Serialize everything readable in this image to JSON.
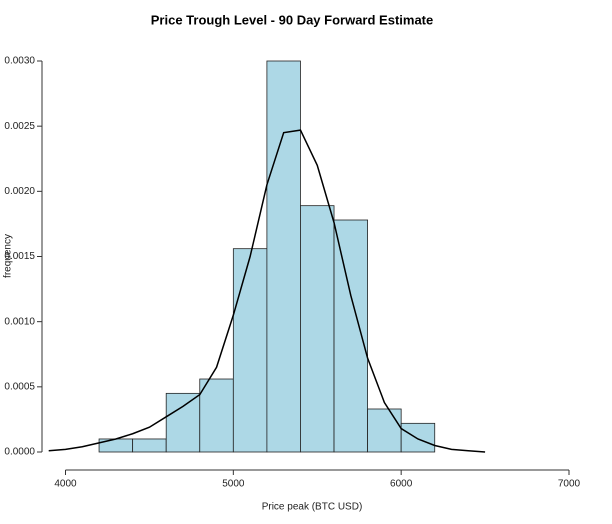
{
  "chart_data": {
    "type": "histogram",
    "title": "Price Trough Level - 90 Day Forward Estimate",
    "xlabel": "Price peak (BTC USD)",
    "ylabel": "frequency",
    "bins": [
      4200,
      4400,
      4600,
      4800,
      5000,
      5200,
      5400,
      5600,
      5800,
      6000,
      6200
    ],
    "values": [
      0.0001,
      0.0001,
      0.00045,
      0.00056,
      0.00156,
      0.003,
      0.00189,
      0.00178,
      0.00033,
      0.00022
    ],
    "color": "#add8e6",
    "density": {
      "color": "#000000",
      "x": [
        3900,
        4000,
        4100,
        4200,
        4300,
        4400,
        4500,
        4600,
        4700,
        4800,
        4900,
        5000,
        5100,
        5200,
        5300,
        5400,
        5500,
        5600,
        5700,
        5800,
        5900,
        6000,
        6100,
        6200,
        6300,
        6400,
        6500
      ],
      "values": [
        1e-05,
        2e-05,
        4e-05,
        7e-05,
        0.0001,
        0.00014,
        0.00019,
        0.00027,
        0.00035,
        0.00044,
        0.00065,
        0.00105,
        0.0015,
        0.00205,
        0.00245,
        0.00247,
        0.0022,
        0.00176,
        0.0012,
        0.00072,
        0.00038,
        0.00018,
        0.0001,
        5e-05,
        2e-05,
        1e-05,
        0
      ]
    },
    "xlim": [
      3860,
      7000
    ],
    "ylim": [
      0,
      0.003
    ],
    "xticks": [
      4000,
      5000,
      6000,
      7000
    ],
    "yticks": [
      {
        "value": 0,
        "label": "0.0000"
      },
      {
        "value": 0.0005,
        "label": "0.0005"
      },
      {
        "value": 0.001,
        "label": "0.0010"
      },
      {
        "value": 0.0015,
        "label": "0.0015"
      },
      {
        "value": 0.002,
        "label": "0.0020"
      },
      {
        "value": 0.0025,
        "label": "0.0025"
      },
      {
        "value": 0.003,
        "label": "0.0030"
      }
    ]
  }
}
